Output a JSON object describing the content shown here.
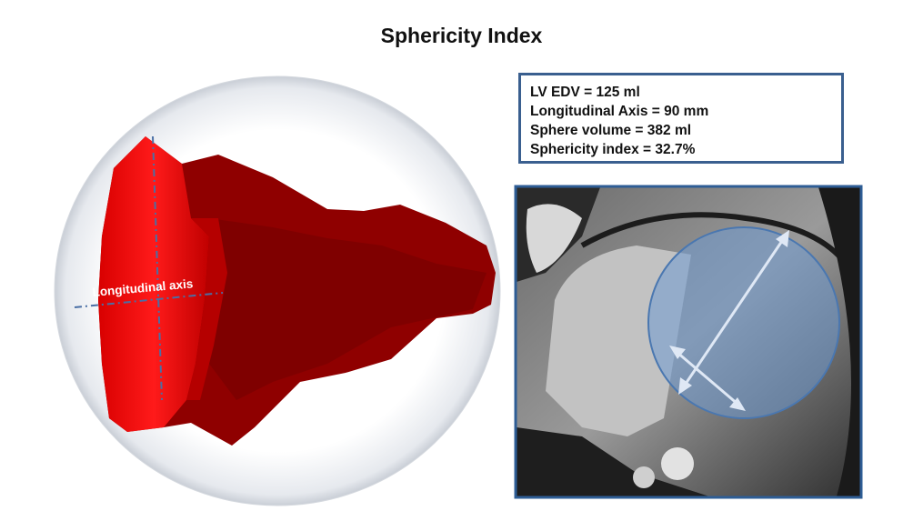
{
  "title": "Sphericity Index",
  "model": {
    "axis_label": "Longitudinal axis"
  },
  "info_box": {
    "lines": [
      "LV EDV = 125 ml",
      "Longitudinal Axis = 90 mm",
      "Sphere volume = 382 ml",
      "Sphericity index  = 32.7%"
    ]
  }
}
